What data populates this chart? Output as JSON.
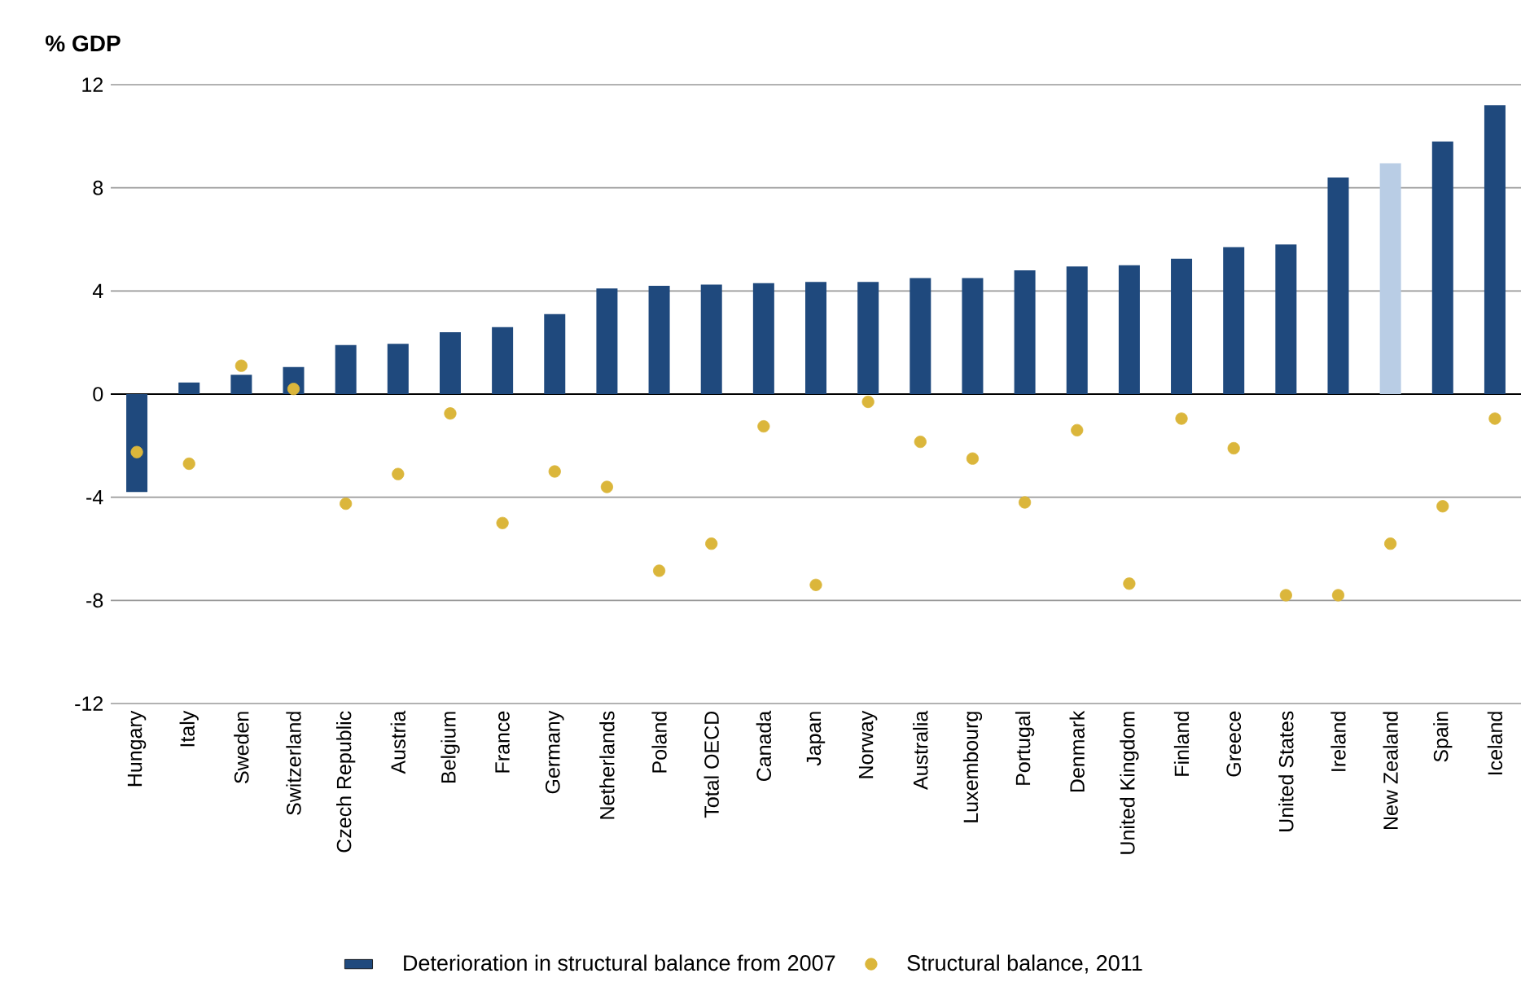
{
  "chart_data": {
    "type": "bar",
    "ylabel": "% GDP",
    "categories": [
      "Hungary",
      "Italy",
      "Sweden",
      "Switzerland",
      "Czech Republic",
      "Austria",
      "Belgium",
      "France",
      "Germany",
      "Netherlands",
      "Poland",
      "Total OECD",
      "Canada",
      "Japan",
      "Norway",
      "Australia",
      "Luxembourg",
      "Portugal",
      "Denmark",
      "United Kingdom",
      "Finland",
      "Greece",
      "United States",
      "Ireland",
      "New Zealand",
      "Spain",
      "Iceland"
    ],
    "series": [
      {
        "name": "Deterioration in structural balance from 2007",
        "color": "#1f497d",
        "colors": [
          "#1f497d",
          "#1f497d",
          "#1f497d",
          "#1f497d",
          "#1f497d",
          "#1f497d",
          "#1f497d",
          "#1f497d",
          "#1f497d",
          "#1f497d",
          "#1f497d",
          "#1f497d",
          "#1f497d",
          "#1f497d",
          "#1f497d",
          "#1f497d",
          "#1f497d",
          "#1f497d",
          "#1f497d",
          "#1f497d",
          "#1f497d",
          "#1f497d",
          "#1f497d",
          "#1f497d",
          "#b9cde5",
          "#1f497d",
          "#1f497d"
        ],
        "values": [
          -3.8,
          0.45,
          0.75,
          1.05,
          1.9,
          1.95,
          2.4,
          2.6,
          3.1,
          4.1,
          4.2,
          4.25,
          4.3,
          4.35,
          4.35,
          4.5,
          4.5,
          4.8,
          4.95,
          5.0,
          5.25,
          5.7,
          5.8,
          8.4,
          8.95,
          9.8,
          11.2
        ]
      },
      {
        "name": "Structural balance, 2011",
        "type": "scatter",
        "color": "#dbb63b",
        "marker": "circle",
        "values": [
          -2.25,
          -2.7,
          1.1,
          0.2,
          -4.25,
          -3.1,
          -0.75,
          -5.0,
          -3.0,
          -3.6,
          -6.85,
          -5.8,
          -1.25,
          -7.4,
          -0.3,
          -1.85,
          -2.5,
          -4.2,
          -1.4,
          -7.35,
          -0.95,
          -2.1,
          -7.8,
          -7.8,
          -5.8,
          -4.35,
          -0.95
        ]
      }
    ],
    "ylim": [
      -12,
      12
    ],
    "yticks": [
      -12,
      -8,
      -4,
      0,
      4,
      8,
      12
    ],
    "grid": "y",
    "legend": "bottom"
  }
}
